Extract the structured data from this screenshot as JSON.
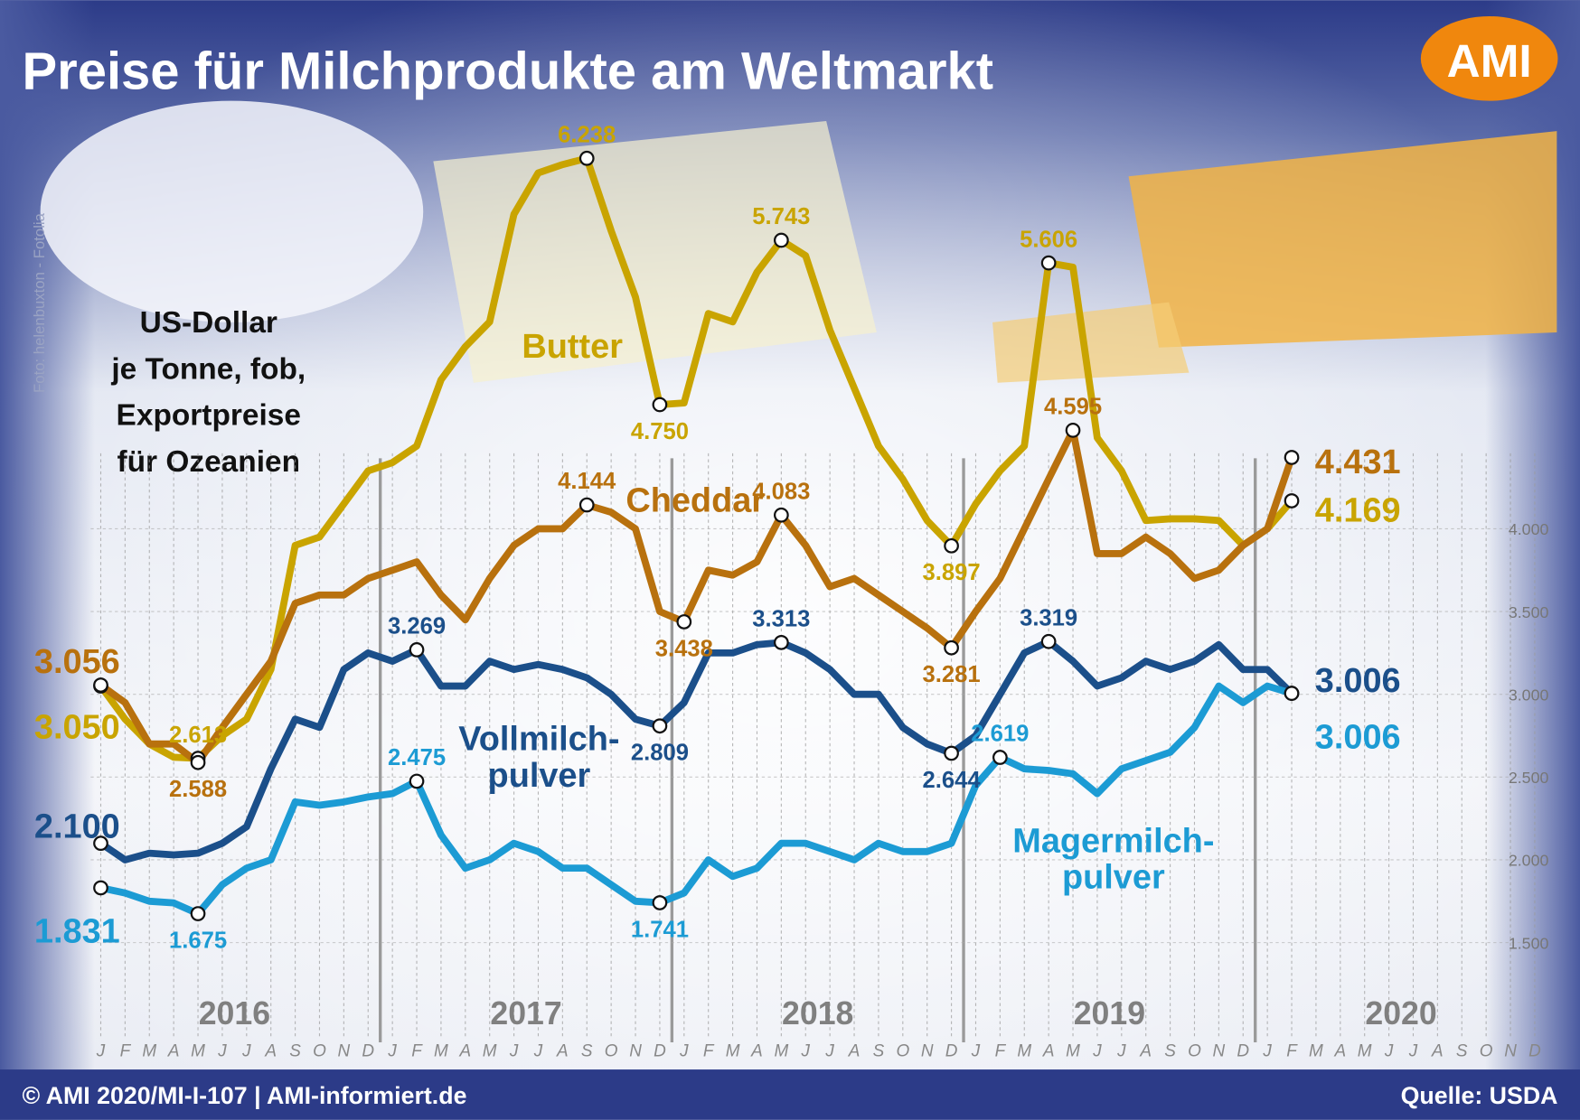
{
  "chart_data": {
    "type": "line",
    "title": "Preise für Milchprodukte am Weltmarkt",
    "logo": "AMI",
    "photo_credit": "Foto: helenbuxton - Fotolia",
    "unit_lines": [
      "US-Dollar",
      "je Tonne, fob,",
      "Exportpreise",
      "für Ozeanien"
    ],
    "footer_left": "© AMI 2020/MI-I-107 | AMI-informiert.de",
    "footer_right": "Quelle: USDA",
    "years": [
      "2016",
      "2017",
      "2018",
      "2019",
      "2020"
    ],
    "categories": [
      "J",
      "F",
      "M",
      "A",
      "M",
      "J",
      "J",
      "A",
      "S",
      "O",
      "N",
      "D",
      "J",
      "F",
      "M",
      "A",
      "M",
      "J",
      "J",
      "A",
      "S",
      "O",
      "N",
      "D",
      "J",
      "F",
      "M",
      "A",
      "M",
      "J",
      "J",
      "A",
      "S",
      "O",
      "N",
      "D",
      "J",
      "F",
      "M",
      "A",
      "M",
      "J",
      "J",
      "A",
      "S",
      "O",
      "N",
      "D",
      "J",
      "F",
      "M",
      "A",
      "M",
      "J",
      "J",
      "A",
      "S",
      "O",
      "N",
      "D"
    ],
    "ylim": [
      1000,
      6500
    ],
    "yticks": [
      {
        "value": 1500,
        "label": "1.500"
      },
      {
        "value": 2000,
        "label": "2.000"
      },
      {
        "value": 2500,
        "label": "2.500"
      },
      {
        "value": 3000,
        "label": "3.000"
      },
      {
        "value": 3500,
        "label": "3.500"
      },
      {
        "value": 4000,
        "label": "4.000"
      }
    ],
    "grid": true,
    "series": [
      {
        "name": "Butter",
        "color": "#c9a400",
        "values": [
          3050,
          2850,
          2700,
          2620,
          2613,
          2750,
          2850,
          3150,
          3900,
          3950,
          4150,
          4350,
          4400,
          4500,
          4900,
          5100,
          5250,
          5900,
          6150,
          6200,
          6238,
          5800,
          5400,
          4750,
          4760,
          5300,
          5250,
          5550,
          5743,
          5650,
          5200,
          4850,
          4500,
          4300,
          4050,
          3897,
          4150,
          4350,
          4500,
          5606,
          5580,
          4550,
          4350,
          4050,
          4060,
          4060,
          4050,
          3900,
          4000,
          4169,
          null,
          null,
          null,
          null,
          null,
          null,
          null,
          null,
          null,
          null
        ],
        "value_labels": [
          "3.050",
          null,
          null,
          null,
          "2.613",
          null,
          null,
          null,
          null,
          null,
          null,
          null,
          null,
          null,
          null,
          null,
          null,
          null,
          null,
          null,
          "6.238",
          null,
          null,
          "4.750",
          null,
          null,
          null,
          null,
          "5.743",
          null,
          null,
          null,
          null,
          null,
          null,
          "3.897",
          null,
          null,
          null,
          "5.606",
          null,
          null,
          null,
          null,
          null,
          null,
          null,
          null,
          null,
          "4.169",
          null,
          null,
          null,
          null,
          null,
          null,
          null,
          null,
          null,
          null
        ]
      },
      {
        "name": "Cheddar",
        "color": "#b8710e",
        "values": [
          3056,
          2950,
          2700,
          2700,
          2588,
          2800,
          3000,
          3200,
          3550,
          3600,
          3600,
          3700,
          3750,
          3800,
          3600,
          3450,
          3700,
          3900,
          4000,
          4000,
          4144,
          4100,
          4000,
          3500,
          3438,
          3750,
          3720,
          3800,
          4083,
          3900,
          3650,
          3700,
          3600,
          3500,
          3400,
          3281,
          3500,
          3700,
          4000,
          4300,
          4595,
          3850,
          3850,
          3950,
          3850,
          3700,
          3750,
          3900,
          4000,
          4431,
          null,
          null,
          null,
          null,
          null,
          null,
          null,
          null,
          null,
          null
        ],
        "value_labels": [
          "3.056",
          null,
          null,
          null,
          "2.588",
          null,
          null,
          null,
          null,
          null,
          null,
          null,
          null,
          null,
          null,
          null,
          null,
          null,
          null,
          null,
          "4.144",
          null,
          null,
          null,
          "3.438",
          null,
          null,
          null,
          "4.083",
          null,
          null,
          null,
          null,
          null,
          null,
          "3.281",
          null,
          null,
          null,
          null,
          "4.595",
          null,
          null,
          null,
          null,
          null,
          null,
          null,
          null,
          "4.431",
          null,
          null,
          null,
          null,
          null,
          null,
          null,
          null,
          null,
          null
        ]
      },
      {
        "name": "Vollmilch-pulver",
        "color": "#1b4f8a",
        "values": [
          2100,
          2000,
          2040,
          2030,
          2040,
          2100,
          2200,
          2550,
          2850,
          2800,
          3150,
          3250,
          3200,
          3269,
          3050,
          3050,
          3200,
          3150,
          3180,
          3150,
          3100,
          3000,
          2850,
          2809,
          2950,
          3250,
          3250,
          3300,
          3313,
          3250,
          3150,
          3000,
          3000,
          2800,
          2700,
          2644,
          2750,
          3000,
          3250,
          3319,
          3200,
          3050,
          3100,
          3200,
          3150,
          3200,
          3300,
          3150,
          3150,
          3006,
          null,
          null,
          null,
          null,
          null,
          null,
          null,
          null,
          null,
          null
        ],
        "value_labels": [
          "2.100",
          null,
          null,
          null,
          null,
          null,
          null,
          null,
          null,
          null,
          null,
          null,
          null,
          "3.269",
          null,
          null,
          null,
          null,
          null,
          null,
          null,
          null,
          null,
          "2.809",
          null,
          null,
          null,
          null,
          "3.313",
          null,
          null,
          null,
          null,
          null,
          null,
          "2.644",
          null,
          null,
          null,
          "3.319",
          null,
          null,
          null,
          null,
          null,
          null,
          null,
          null,
          null,
          "3.006",
          null,
          null,
          null,
          null,
          null,
          null,
          null,
          null,
          null,
          null
        ]
      },
      {
        "name": "Magermilch-pulver",
        "color": "#1c9bd4",
        "values": [
          1831,
          1800,
          1750,
          1740,
          1675,
          1850,
          1950,
          2000,
          2350,
          2330,
          2350,
          2380,
          2400,
          2475,
          2150,
          1950,
          2000,
          2100,
          2050,
          1950,
          1950,
          1850,
          1750,
          1741,
          1800,
          2000,
          1900,
          1950,
          2100,
          2100,
          2050,
          2000,
          2100,
          2050,
          2050,
          2100,
          2450,
          2619,
          2550,
          2540,
          2520,
          2400,
          2550,
          2600,
          2650,
          2800,
          3050,
          2950,
          3050,
          3006,
          null,
          null,
          null,
          null,
          null,
          null,
          null,
          null,
          null,
          null
        ],
        "value_labels": [
          "1.831",
          null,
          null,
          null,
          "1.675",
          null,
          null,
          null,
          null,
          null,
          null,
          null,
          null,
          "2.475",
          null,
          null,
          null,
          null,
          null,
          null,
          null,
          null,
          null,
          "1.741",
          null,
          null,
          null,
          null,
          null,
          null,
          null,
          null,
          null,
          null,
          null,
          null,
          null,
          "2.619",
          null,
          null,
          null,
          null,
          null,
          null,
          null,
          null,
          null,
          null,
          null,
          "3.006",
          null,
          null,
          null,
          null,
          null,
          null,
          null,
          null,
          null,
          null
        ]
      }
    ]
  }
}
